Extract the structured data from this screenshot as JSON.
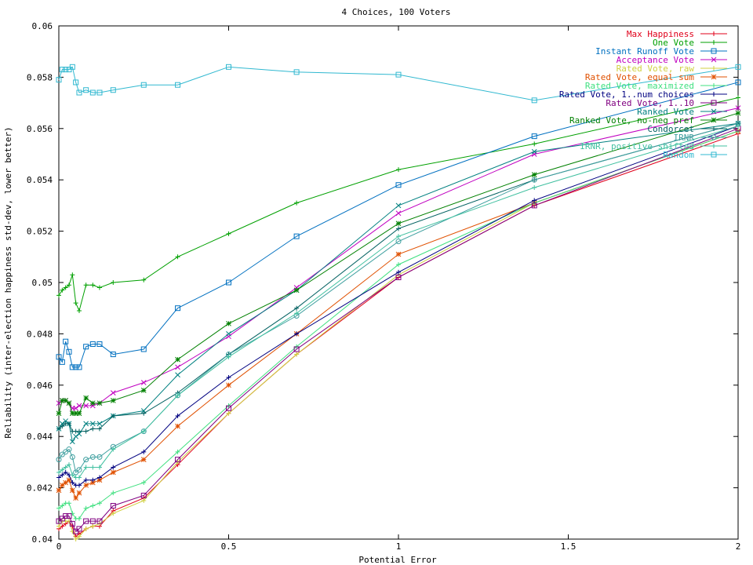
{
  "chart_data": {
    "type": "line",
    "title": "4 Choices, 100 Voters",
    "xlabel": "Potential Error",
    "ylabel": "Reliability (inter-election happiness std-dev, lower better)",
    "xlim": [
      0,
      2
    ],
    "ylim": [
      0.04,
      0.06
    ],
    "xticks": [
      0,
      0.5,
      1,
      1.5,
      2
    ],
    "xtick_labels": [
      "0",
      "0.5",
      "1",
      "1.5",
      "2"
    ],
    "yticks": [
      0.04,
      0.042,
      0.044,
      0.046,
      0.048,
      0.05,
      0.052,
      0.054,
      0.056,
      0.058,
      0.06
    ],
    "ytick_labels": [
      "0.04",
      "0.042",
      "0.044",
      "0.046",
      "0.048",
      "0.05",
      "0.052",
      "0.054",
      "0.056",
      "0.058",
      "0.06"
    ],
    "grid": false,
    "legend_position": "top-right",
    "x": [
      0,
      0.01,
      0.02,
      0.03,
      0.04,
      0.05,
      0.06,
      0.08,
      0.1,
      0.12,
      0.16,
      0.25,
      0.35,
      0.5,
      0.7,
      1.0,
      1.4,
      2.0
    ],
    "series": [
      {
        "name": "Max Happiness",
        "color": "#e0001a",
        "marker": "plus",
        "values": [
          0.0404,
          0.0405,
          0.0406,
          0.0407,
          0.0405,
          0.0401,
          0.0402,
          0.0404,
          0.0405,
          0.0405,
          0.0411,
          0.0416,
          0.0429,
          0.0449,
          0.0472,
          0.0502,
          0.053,
          0.0558
        ]
      },
      {
        "name": "One Vote",
        "color": "#00a000",
        "marker": "plus",
        "values": [
          0.0495,
          0.0497,
          0.0498,
          0.0499,
          0.0503,
          0.0492,
          0.0489,
          0.0499,
          0.0499,
          0.0498,
          0.05,
          0.0501,
          0.051,
          0.0519,
          0.0531,
          0.0544,
          0.0554,
          0.0572
        ]
      },
      {
        "name": "Instant Runoff Vote",
        "color": "#0070c0",
        "marker": "square",
        "values": [
          0.0471,
          0.0469,
          0.0477,
          0.0473,
          0.0467,
          0.0467,
          0.0467,
          0.0475,
          0.0476,
          0.0476,
          0.0472,
          0.0474,
          0.049,
          0.05,
          0.0518,
          0.0538,
          0.0557,
          0.0578
        ]
      },
      {
        "name": "Acceptance Vote",
        "color": "#c000c0",
        "marker": "x",
        "values": [
          0.0453,
          0.0454,
          0.0454,
          0.0453,
          0.0451,
          0.0451,
          0.0452,
          0.0452,
          0.0452,
          0.0453,
          0.0457,
          0.0461,
          0.0467,
          0.0479,
          0.0498,
          0.0527,
          0.055,
          0.0568
        ]
      },
      {
        "name": "Rated Vote, raw",
        "color": "#d0d040",
        "marker": "plus",
        "values": [
          0.0405,
          0.0407,
          0.0407,
          0.0407,
          0.0403,
          0.04,
          0.0401,
          0.0404,
          0.0405,
          0.0406,
          0.041,
          0.0415,
          0.043,
          0.0449,
          0.0472,
          0.0503,
          0.0531,
          0.0559
        ]
      },
      {
        "name": "Rated Vote, equal sum",
        "color": "#e05000",
        "marker": "star",
        "values": [
          0.0419,
          0.0421,
          0.0422,
          0.0423,
          0.0419,
          0.0416,
          0.0418,
          0.0421,
          0.0422,
          0.0423,
          0.0426,
          0.0431,
          0.0444,
          0.046,
          0.048,
          0.0511,
          0.0531,
          0.0559
        ]
      },
      {
        "name": "Rated Vote, maximized",
        "color": "#40e080",
        "marker": "plus",
        "values": [
          0.0412,
          0.0413,
          0.0414,
          0.0414,
          0.041,
          0.0408,
          0.0408,
          0.0412,
          0.0413,
          0.0414,
          0.0418,
          0.0422,
          0.0434,
          0.0452,
          0.0475,
          0.0507,
          0.0531,
          0.0559
        ]
      },
      {
        "name": "Rated Vote, 1..num choices",
        "color": "#000080",
        "marker": "plus",
        "values": [
          0.0424,
          0.0425,
          0.0426,
          0.0425,
          0.0422,
          0.0421,
          0.0421,
          0.0423,
          0.0423,
          0.0424,
          0.0428,
          0.0434,
          0.0448,
          0.0463,
          0.048,
          0.0504,
          0.0532,
          0.0561
        ]
      },
      {
        "name": "Rated Vote, 1..10",
        "color": "#800080",
        "marker": "square",
        "values": [
          0.0407,
          0.0408,
          0.0409,
          0.0409,
          0.0406,
          0.0403,
          0.0404,
          0.0407,
          0.0407,
          0.0407,
          0.0413,
          0.0417,
          0.0431,
          0.0451,
          0.0474,
          0.0502,
          0.053,
          0.056
        ]
      },
      {
        "name": "Ranked Vote",
        "color": "#008080",
        "marker": "x",
        "values": [
          0.0443,
          0.0445,
          0.0446,
          0.0445,
          0.0438,
          0.044,
          0.0441,
          0.0445,
          0.0445,
          0.0445,
          0.0448,
          0.045,
          0.0464,
          0.048,
          0.0497,
          0.053,
          0.0551,
          0.0562
        ]
      },
      {
        "name": "Ranked Vote, no-neg pref",
        "color": "#008000",
        "marker": "star",
        "values": [
          0.0449,
          0.0454,
          0.0454,
          0.0453,
          0.0449,
          0.0449,
          0.0449,
          0.0455,
          0.0453,
          0.0453,
          0.0454,
          0.0458,
          0.047,
          0.0484,
          0.0497,
          0.0523,
          0.0542,
          0.0566
        ]
      },
      {
        "name": "Condorcet",
        "color": "#006060",
        "marker": "plus",
        "values": [
          0.0443,
          0.0444,
          0.0445,
          0.0445,
          0.0442,
          0.0442,
          0.0442,
          0.0442,
          0.0443,
          0.0443,
          0.0448,
          0.0449,
          0.0457,
          0.0472,
          0.049,
          0.0521,
          0.054,
          0.0562
        ]
      },
      {
        "name": "IRNR",
        "color": "#40a0a0",
        "marker": "circle",
        "values": [
          0.0431,
          0.0433,
          0.0434,
          0.0435,
          0.0432,
          0.0426,
          0.0427,
          0.0431,
          0.0432,
          0.0432,
          0.0436,
          0.0442,
          0.0456,
          0.0472,
          0.0487,
          0.0516,
          0.054,
          0.0562
        ]
      },
      {
        "name": "IRNR, positive shifted",
        "color": "#40c0a0",
        "marker": "plus",
        "values": [
          0.0426,
          0.0427,
          0.0428,
          0.0429,
          0.0425,
          0.0424,
          0.0424,
          0.0428,
          0.0428,
          0.0428,
          0.0435,
          0.0442,
          0.0456,
          0.0471,
          0.0488,
          0.0518,
          0.0537,
          0.0561
        ]
      },
      {
        "name": "Random",
        "color": "#30b8d0",
        "marker": "square",
        "values": [
          0.0579,
          0.0583,
          0.0583,
          0.0583,
          0.0584,
          0.0578,
          0.0574,
          0.0575,
          0.0574,
          0.0574,
          0.0575,
          0.0577,
          0.0577,
          0.0584,
          0.0582,
          0.0581,
          0.0571,
          0.0584
        ]
      }
    ]
  }
}
